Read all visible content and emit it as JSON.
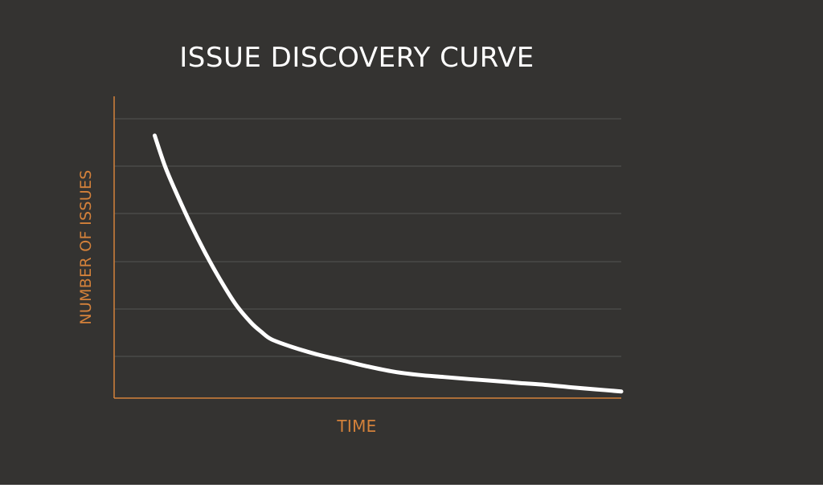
{
  "chart_data": {
    "type": "line",
    "title": "ISSUE DISCOVERY CURVE",
    "xlabel": "TIME",
    "ylabel": "NUMBER OF ISSUES",
    "xlim": [
      0,
      100
    ],
    "ylim": [
      0,
      100
    ],
    "grid": true,
    "series": [
      {
        "x": [
          8,
          10,
          12,
          15,
          18,
          21,
          24,
          27,
          29,
          31,
          35,
          40,
          45,
          50,
          55,
          60,
          65,
          70,
          75,
          80,
          85,
          90,
          95,
          100
        ],
        "y": [
          87,
          77,
          69,
          58,
          48,
          39,
          31,
          25,
          22,
          19.5,
          17,
          14.5,
          12.5,
          10.5,
          8.8,
          7.7,
          7,
          6.3,
          5.7,
          5,
          4.4,
          3.6,
          2.9,
          2.2
        ]
      }
    ],
    "colors": {
      "background": "#343331",
      "axis": "#d4813a",
      "grid": "#555452",
      "line": "#ffffff",
      "title": "#ffffff",
      "axis_label": "#d4813a"
    }
  }
}
